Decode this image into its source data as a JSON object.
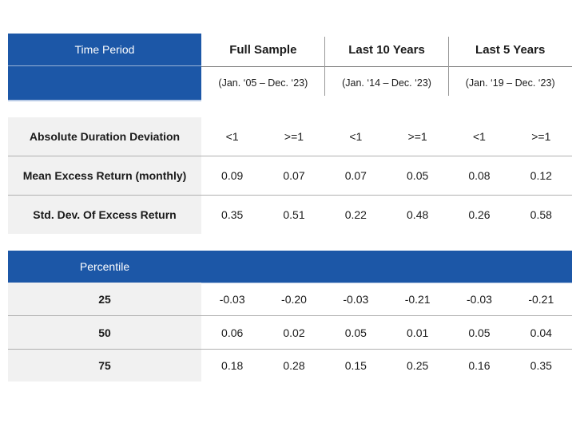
{
  "colors": {
    "header_blue": "#1C57A7",
    "label_cell_bg": "#F1F1F1",
    "header_rule_gray": "#7D7D7D",
    "row_rule_gray": "#B0B0B0",
    "header_text_white": "#FFFFFF",
    "body_text": "#1A1A1A"
  },
  "chart_data": {
    "type": "table",
    "corner_header": "Time Period",
    "column_groups": [
      {
        "name": "Full Sample",
        "range": "(Jan. ‘05 – Dec. ‘23)"
      },
      {
        "name": "Last 10 Years",
        "range": "(Jan. ‘14 – Dec. ‘23)"
      },
      {
        "name": "Last 5 Years",
        "range": "(Jan. ‘19 – Dec. ‘23)"
      }
    ],
    "sub_columns_per_group": [
      "<1",
      ">=1"
    ],
    "metric_rows": [
      {
        "label": "Absolute Duration Deviation",
        "values": [
          "<1",
          ">=1",
          "<1",
          ">=1",
          "<1",
          ">=1"
        ]
      },
      {
        "label": "Mean Excess Return (monthly)",
        "values": [
          "0.09",
          "0.07",
          "0.07",
          "0.05",
          "0.08",
          "0.12"
        ]
      },
      {
        "label": "Std. Dev. Of Excess Return",
        "values": [
          "0.35",
          "0.51",
          "0.22",
          "0.48",
          "0.26",
          "0.58"
        ]
      }
    ],
    "percentile_header": "Percentile",
    "percentile_rows": [
      {
        "label": "25",
        "values": [
          "-0.03",
          "-0.20",
          "-0.03",
          "-0.21",
          "-0.03",
          "-0.21"
        ]
      },
      {
        "label": "50",
        "values": [
          "0.06",
          "0.02",
          "0.05",
          "0.01",
          "0.05",
          "0.04"
        ]
      },
      {
        "label": "75",
        "values": [
          "0.18",
          "0.28",
          "0.15",
          "0.25",
          "0.16",
          "0.35"
        ]
      }
    ]
  }
}
